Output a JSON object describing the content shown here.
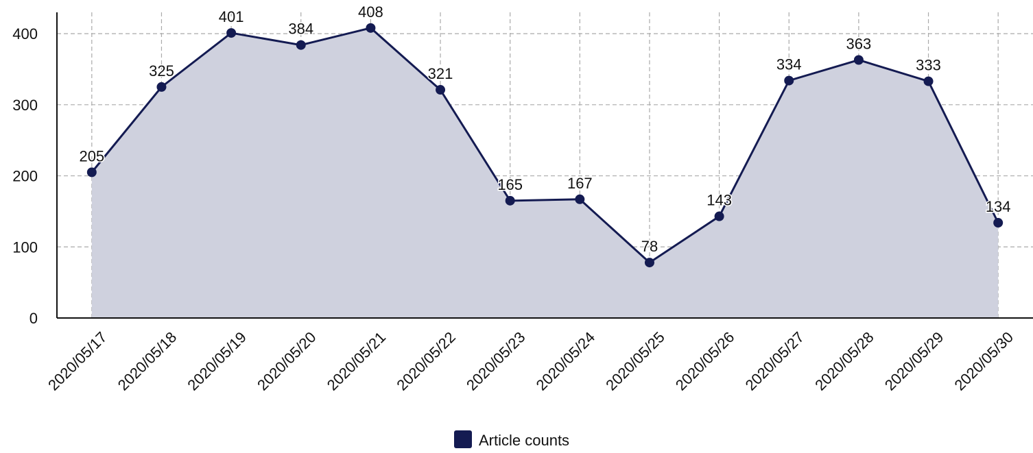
{
  "chart_data": {
    "type": "area",
    "categories": [
      "2020/05/17",
      "2020/05/18",
      "2020/05/19",
      "2020/05/20",
      "2020/05/21",
      "2020/05/22",
      "2020/05/23",
      "2020/05/24",
      "2020/05/25",
      "2020/05/26",
      "2020/05/27",
      "2020/05/28",
      "2020/05/29",
      "2020/05/30"
    ],
    "series": [
      {
        "name": "Article counts",
        "color": "#141b52",
        "fill": "#cfd1de",
        "values": [
          205,
          325,
          401,
          384,
          408,
          321,
          165,
          167,
          78,
          143,
          334,
          363,
          333,
          134
        ]
      }
    ],
    "ylim": [
      0,
      430
    ],
    "yticks": [
      0,
      100,
      200,
      300,
      400
    ],
    "grid": true,
    "legend": "bottom"
  }
}
